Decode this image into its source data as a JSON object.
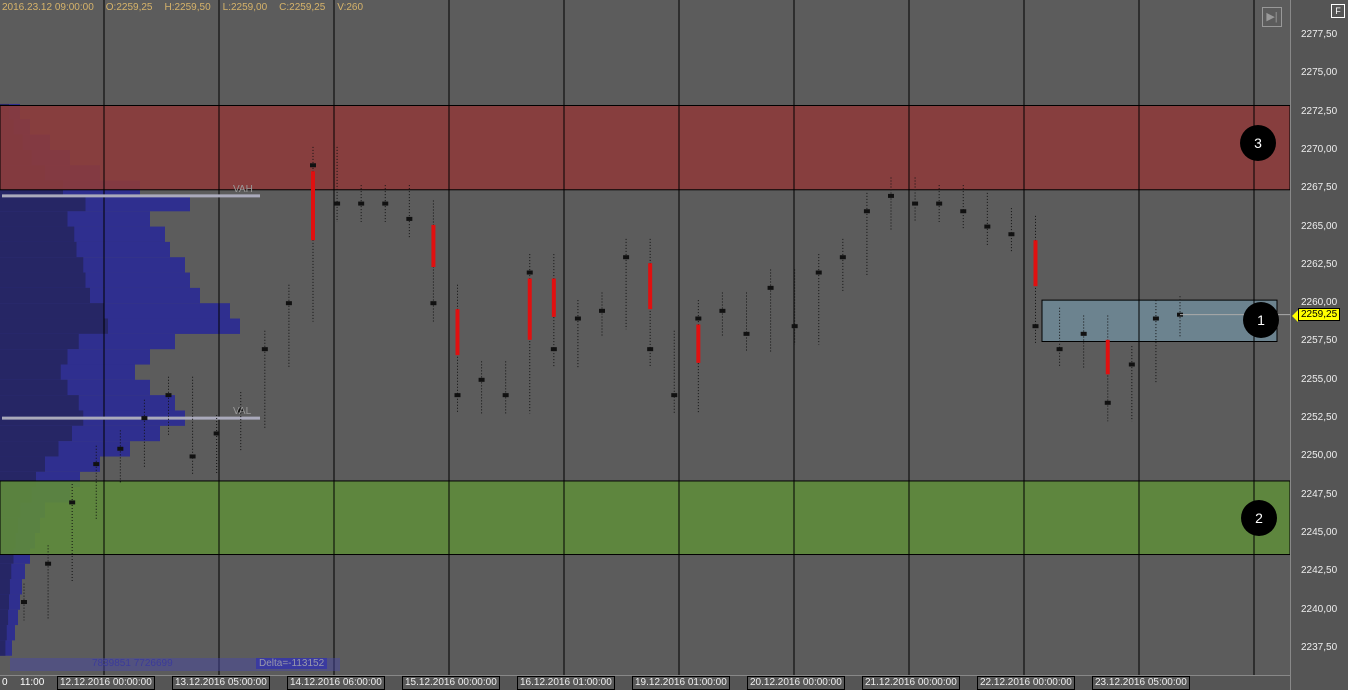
{
  "header": {
    "datetime": "2016.23.12 09:00:00",
    "open": "O:2259,25",
    "high": "H:2259,50",
    "low": "L:2259,00",
    "close": "C:2259,25",
    "volume": "V:260"
  },
  "price_axis": {
    "labels": [
      "2277,50",
      "2275,00",
      "2272,50",
      "2270,00",
      "2267,50",
      "2265,00",
      "2262,50",
      "2260,00",
      "2257,50",
      "2255,00",
      "2252,50",
      "2250,00",
      "2247,50",
      "2245,00",
      "2242,50",
      "2240,00",
      "2237,50"
    ],
    "last_price": "2259,25",
    "last_price_color": "#ffff00"
  },
  "buttons": {
    "f_label": "F",
    "scroll_end_icon": "skip-to-end-icon"
  },
  "zones": [
    {
      "label": "3",
      "from": 2267.4,
      "to": 2272.9,
      "color": "#8b3c3c"
    },
    {
      "label": "2",
      "from": 2243.6,
      "to": 2248.4,
      "color": "#5e8a3c"
    },
    {
      "label": "1",
      "from": 2257.5,
      "to": 2260.2,
      "color": "#6f8a98"
    }
  ],
  "profile": {
    "vah_label": "VAH",
    "val_label": "VAL",
    "vah": 2267.0,
    "val": 2252.5,
    "levels": [
      2272.5,
      2271.5,
      2270.5,
      2269.5,
      2268.5,
      2267.5,
      2266.5,
      2265.5,
      2264.5,
      2263.5,
      2262.5,
      2261.5,
      2260.5,
      2259.5,
      2258.5,
      2257.5,
      2256.5,
      2255.5,
      2254.5,
      2253.5,
      2252.5,
      2251.5,
      2250.5,
      2249.5,
      2248.5,
      2247.5,
      2246.5,
      2245.5,
      2244.5,
      2243.5,
      2242.5,
      2241.5,
      2240.5,
      2239.5,
      2238.5,
      2237.5
    ],
    "volumes": [
      20,
      30,
      50,
      70,
      100,
      140,
      190,
      150,
      165,
      170,
      185,
      190,
      200,
      230,
      240,
      175,
      150,
      135,
      150,
      175,
      185,
      160,
      130,
      100,
      80,
      70,
      45,
      40,
      35,
      30,
      25,
      22,
      20,
      18,
      15,
      12
    ]
  },
  "stats": {
    "volumes": "7839851 7726699",
    "delta": "Delta=-113152"
  },
  "time_axis": {
    "labels": [
      "0",
      "11:00"
    ],
    "date_boxes": [
      "12.12.2016 00:00:00",
      "13.12.2016 05:00:00",
      "14.12.2016 06:00:00",
      "15.12.2016 00:00:00",
      "16.12.2016 01:00:00",
      "19.12.2016 01:00:00",
      "20.12.2016 00:00:00",
      "21.12.2016 00:00:00",
      "22.12.2016 00:00:00",
      "23.12.2016 05:00:00"
    ]
  },
  "chart_data": {
    "type": "line",
    "ylim": [
      2236,
      2278.5
    ],
    "close": [
      2240.5,
      2243,
      2247,
      2249.5,
      2250.5,
      2252.5,
      2254,
      2250,
      2251.5,
      2253,
      2257,
      2260,
      2269,
      2266.5,
      2266.5,
      2266.5,
      2265.5,
      2260,
      2254,
      2255,
      2254,
      2262,
      2257,
      2259,
      2259.5,
      2263,
      2257,
      2254,
      2259,
      2259.5,
      2258,
      2261,
      2258.5,
      2262,
      2263,
      2266,
      2267,
      2266.5,
      2266.5,
      2266,
      2265,
      2264.5,
      2258.5,
      2257,
      2258,
      2253.5,
      2256,
      2259,
      2259.25
    ]
  }
}
